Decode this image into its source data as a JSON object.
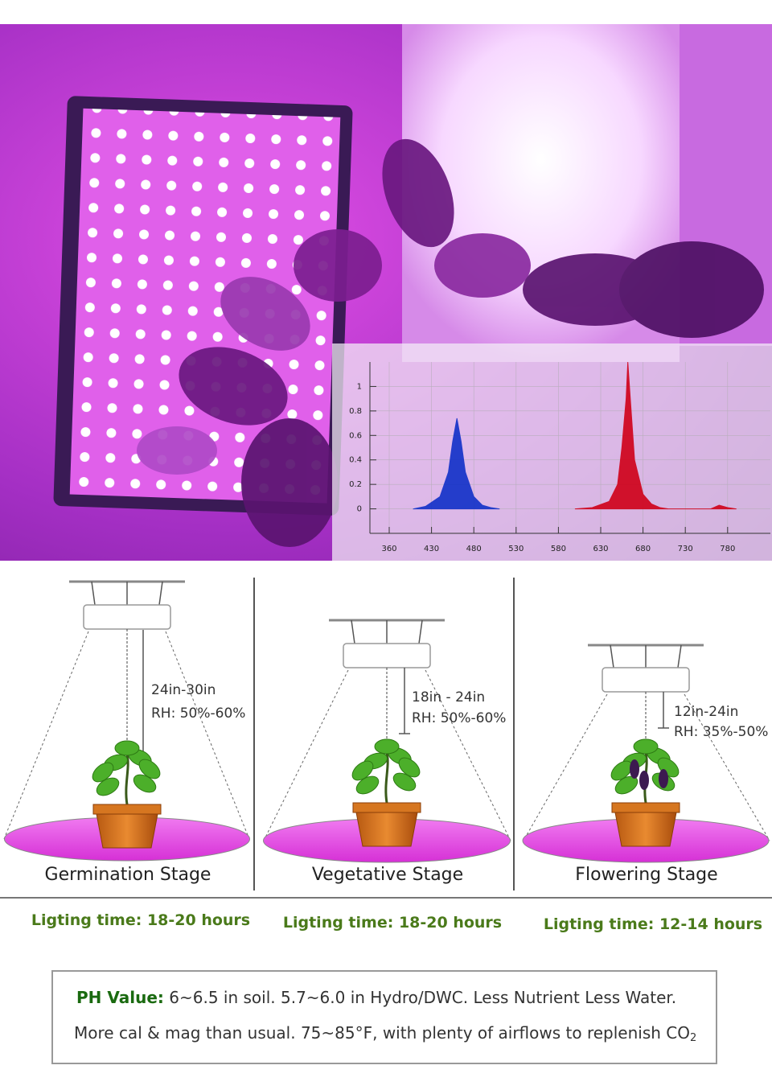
{
  "chart_data": {
    "type": "area",
    "xticks": [
      360,
      430,
      480,
      530,
      580,
      630,
      680,
      730,
      780
    ],
    "ylim": [
      -0.2,
      1.2
    ],
    "yticks": [
      0,
      0.2,
      0.4,
      0.6,
      0.8,
      1
    ],
    "grid": true,
    "series": [
      {
        "color": "#1030c8",
        "x": [
          400,
          420,
          440,
          450,
          455,
          460,
          465,
          470,
          480,
          490,
          500,
          510
        ],
        "values": [
          0,
          0.02,
          0.1,
          0.3,
          0.55,
          0.74,
          0.55,
          0.3,
          0.1,
          0.03,
          0.01,
          0
        ]
      },
      {
        "color": "#d00018",
        "x": [
          600,
          620,
          640,
          650,
          655,
          660,
          662,
          665,
          670,
          680,
          690,
          700,
          710,
          760,
          770,
          780,
          790
        ],
        "values": [
          0,
          0.01,
          0.06,
          0.2,
          0.5,
          0.9,
          1.2,
          0.9,
          0.4,
          0.12,
          0.04,
          0.01,
          0,
          0,
          0.03,
          0.01,
          0
        ]
      }
    ]
  },
  "stages": [
    {
      "distance": "24in-30in",
      "humidity": "RH: 50%-60%",
      "name": "Germination Stage",
      "lighting_label": "Ligting time:",
      "lighting_value": "18-20 hours"
    },
    {
      "distance": "18in - 24in",
      "humidity": "RH: 50%-60%",
      "name": "Vegetative Stage",
      "lighting_label": "Ligting time:",
      "lighting_value": "18-20 hours"
    },
    {
      "distance": "12in-24in",
      "humidity": "RH: 35%-50%",
      "name": "Flowering Stage",
      "lighting_label": "Ligting time:",
      "lighting_value": "12-14 hours"
    }
  ],
  "notes": {
    "ph_label": "PH Value:",
    "ph_text": "6~6.5 in soil. 5.7~6.0 in Hydro/DWC. Less Nutrient Less Water.",
    "line2": "More cal & mag than usual. 75~85°F, with plenty of airflows to replenish CO",
    "subscript": "2"
  }
}
